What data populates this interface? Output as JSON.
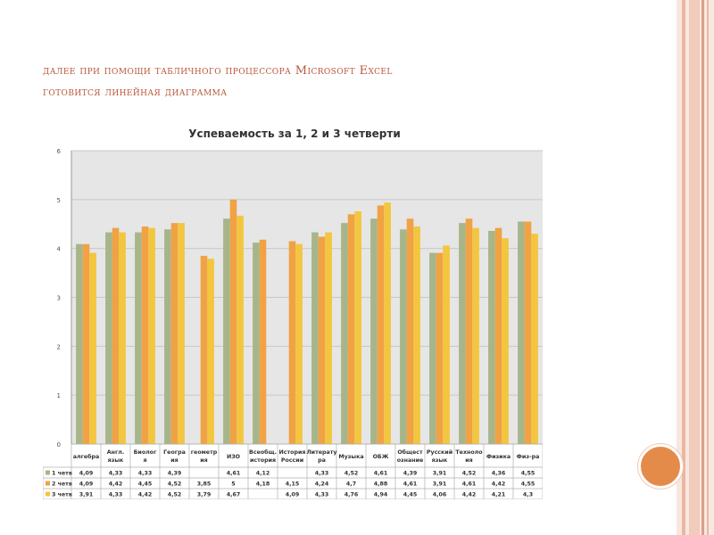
{
  "heading": {
    "line1": "далее при помощи табличного процессора  Microsoft Excel",
    "line2": "готовится линейная диаграмма"
  },
  "colors": {
    "accent": "#b9583a",
    "stripe_dark": "#d9a08a",
    "stripe_light": "#f3d8cc",
    "circle": "#e58b4a",
    "series": [
      "#a7b58a",
      "#f0a245",
      "#f3c63f"
    ],
    "plot_bg": "#e6e6e6"
  },
  "chart_data": {
    "type": "bar",
    "title": "Успеваемость за 1, 2 и  3 четверти",
    "categories": [
      [
        "алгебра"
      ],
      [
        "Англ.",
        "язык"
      ],
      [
        "Биолог",
        "я"
      ],
      [
        "Геогра",
        "ия"
      ],
      [
        "геометр",
        "ия"
      ],
      [
        "ИЗО"
      ],
      [
        "Всеобщ.",
        "история"
      ],
      [
        "История",
        "России"
      ],
      [
        "Литерату",
        "ра"
      ],
      [
        "Музыка"
      ],
      [
        "ОБЖ"
      ],
      [
        "Общест",
        "ознание"
      ],
      [
        "Русский",
        "язык"
      ],
      [
        "Техноло",
        "ия"
      ],
      [
        "Физика"
      ],
      [
        "Физ-ра"
      ]
    ],
    "ylim": [
      0,
      6
    ],
    "yticks": [
      "0",
      "1",
      "2",
      "3",
      "4",
      "5",
      "6"
    ],
    "grid": true,
    "legend": "table-bottom",
    "series": [
      {
        "name": "1 четв",
        "values": [
          4.09,
          4.33,
          4.33,
          4.39,
          null,
          4.61,
          4.12,
          null,
          4.33,
          4.52,
          4.61,
          4.39,
          3.91,
          4.52,
          4.36,
          4.55
        ],
        "labels": [
          "4,09",
          "4,33",
          "4,33",
          "4,39",
          "",
          "4,61",
          "4,12",
          "",
          "4,33",
          "4,52",
          "4,61",
          "4,39",
          "3,91",
          "4,52",
          "4,36",
          "4,55"
        ]
      },
      {
        "name": "2 четв",
        "values": [
          4.09,
          4.42,
          4.45,
          4.52,
          3.85,
          5,
          4.18,
          4.15,
          4.24,
          4.7,
          4.88,
          4.61,
          3.91,
          4.61,
          4.42,
          4.55
        ],
        "labels": [
          "4,09",
          "4,42",
          "4,45",
          "4,52",
          "3,85",
          "5",
          "4,18",
          "4,15",
          "4,24",
          "4,7",
          "4,88",
          "4,61",
          "3,91",
          "4,61",
          "4,42",
          "4,55"
        ]
      },
      {
        "name": "3 четв",
        "values": [
          3.91,
          4.33,
          4.42,
          4.52,
          3.79,
          4.67,
          null,
          4.09,
          4.33,
          4.76,
          4.94,
          4.45,
          4.06,
          4.42,
          4.21,
          4.3
        ],
        "labels": [
          "3,91",
          "4,33",
          "4,42",
          "4,52",
          "3,79",
          "4,67",
          "",
          "4,09",
          "4,33",
          "4,76",
          "4,94",
          "4,45",
          "4,06",
          "4,42",
          "4,21",
          "4,3"
        ]
      }
    ]
  }
}
